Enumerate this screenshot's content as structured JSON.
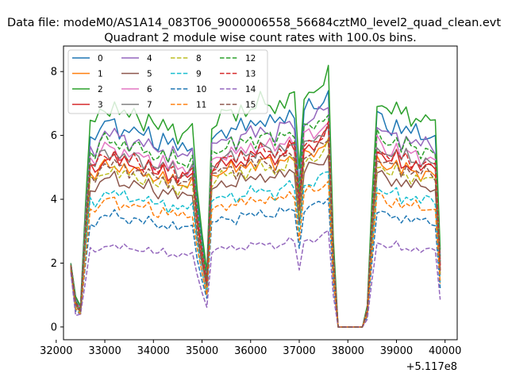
{
  "chart_data": {
    "type": "line",
    "suptitle": "Data file: modeM0/AS1A14_083T06_9000006558_56684cztM0_level2_quad_clean.evt",
    "title": "Quadrant 2 module wise count rates with 100.0s bins.",
    "xlabel": "",
    "ylabel": "",
    "x_offset_label": "+5.117e8",
    "xlim": [
      32150,
      40250
    ],
    "ylim": [
      -0.4,
      8.8
    ],
    "xticks": [
      32000,
      33000,
      34000,
      35000,
      36000,
      37000,
      38000,
      39000,
      40000
    ],
    "yticks": [
      0,
      2,
      4,
      6,
      8
    ],
    "x": [
      32300,
      32400,
      32500,
      32600,
      32700,
      32800,
      32900,
      33000,
      33100,
      33200,
      33300,
      33400,
      33500,
      33600,
      33700,
      33800,
      33900,
      34000,
      34100,
      34200,
      34300,
      34400,
      34500,
      34600,
      34700,
      34800,
      34900,
      35000,
      35100,
      35200,
      35300,
      35400,
      35500,
      35600,
      35700,
      35800,
      35900,
      36000,
      36100,
      36200,
      36300,
      36400,
      36500,
      36600,
      36700,
      36800,
      36900,
      37000,
      37100,
      37200,
      37300,
      37400,
      37500,
      37600,
      37700,
      37800,
      37900,
      38000,
      38100,
      38200,
      38300,
      38400,
      38500,
      38600,
      38700,
      38800,
      38900,
      39000,
      39100,
      39200,
      39300,
      39400,
      39500,
      39600,
      39700,
      39800,
      39900
    ],
    "legend_position": "upper-left",
    "series": [
      {
        "name": "0",
        "color": "#1f77b4",
        "dash": "solid",
        "level": 1.0
      },
      {
        "name": "1",
        "color": "#ff7f0e",
        "dash": "solid",
        "level": 0.8
      },
      {
        "name": "2",
        "color": "#2ca02c",
        "dash": "solid",
        "level": 1.08
      },
      {
        "name": "3",
        "color": "#d62728",
        "dash": "solid",
        "level": 0.83
      },
      {
        "name": "4",
        "color": "#9467bd",
        "dash": "solid",
        "level": 0.95
      },
      {
        "name": "5",
        "color": "#8c564b",
        "dash": "solid",
        "level": 0.73
      },
      {
        "name": "6",
        "color": "#e377c2",
        "dash": "solid",
        "level": 0.88
      },
      {
        "name": "7",
        "color": "#7f7f7f",
        "dash": "solid",
        "level": 0.86
      },
      {
        "name": "8",
        "color": "#bcbd22",
        "dash": "dashed",
        "level": 0.77
      },
      {
        "name": "9",
        "color": "#17becf",
        "dash": "dashed",
        "level": 0.66
      },
      {
        "name": "10",
        "color": "#1f77b4",
        "dash": "dashed",
        "level": 0.55
      },
      {
        "name": "11",
        "color": "#ff7f0e",
        "dash": "dashed",
        "level": 0.62
      },
      {
        "name": "12",
        "color": "#2ca02c",
        "dash": "dashed",
        "level": 0.92
      },
      {
        "name": "13",
        "color": "#d62728",
        "dash": "dashed",
        "level": 0.85
      },
      {
        "name": "14",
        "color": "#9467bd",
        "dash": "dashed",
        "level": 0.4
      },
      {
        "name": "15",
        "color": "#8c564b",
        "dash": "dashed",
        "level": 0.8
      }
    ],
    "profile": [
      2.0,
      0.9,
      0.6,
      3.5,
      6.0,
      5.8,
      6.2,
      6.4,
      6.3,
      6.5,
      6.1,
      6.3,
      6.0,
      6.2,
      6.1,
      5.9,
      6.2,
      5.8,
      5.7,
      6.0,
      5.6,
      5.9,
      5.5,
      5.7,
      5.6,
      5.8,
      4.0,
      2.7,
      1.6,
      5.9,
      6.0,
      6.2,
      6.1,
      6.3,
      6.0,
      6.4,
      6.2,
      6.5,
      6.3,
      6.6,
      6.4,
      6.5,
      6.2,
      6.6,
      6.5,
      6.8,
      6.6,
      4.5,
      6.7,
      6.9,
      6.8,
      7.0,
      7.1,
      7.4,
      2.5,
      0.0,
      0.0,
      0.0,
      0.0,
      0.0,
      0.0,
      0.6,
      3.8,
      6.6,
      6.5,
      6.3,
      6.2,
      6.5,
      6.0,
      6.3,
      6.0,
      6.2,
      5.9,
      6.1,
      6.0,
      5.9,
      2.2
    ],
    "floor": [
      0.0,
      0.35,
      0.4,
      0.5,
      0.55,
      0.5,
      0.5,
      0.5,
      0.5,
      0.5,
      0.5,
      0.5,
      0.5,
      0.5,
      0.5,
      0.5,
      0.5,
      0.5,
      0.5,
      0.5,
      0.5,
      0.5,
      0.5,
      0.5,
      0.5,
      0.5,
      0.5,
      0.5,
      0.5,
      0.5,
      0.5,
      0.5,
      0.5,
      0.5,
      0.5,
      0.5,
      0.5,
      0.5,
      0.5,
      0.5,
      0.5,
      0.5,
      0.5,
      0.5,
      0.5,
      0.5,
      0.5,
      0.5,
      0.5,
      0.5,
      0.5,
      0.5,
      0.5,
      0.5,
      0.5,
      0.0,
      0.0,
      0.0,
      0.0,
      0.0,
      0.0,
      0.2,
      0.5,
      0.5,
      0.5,
      0.5,
      0.5,
      0.5,
      0.5,
      0.5,
      0.5,
      0.5,
      0.5,
      0.5,
      0.5,
      0.5,
      0.5
    ]
  }
}
